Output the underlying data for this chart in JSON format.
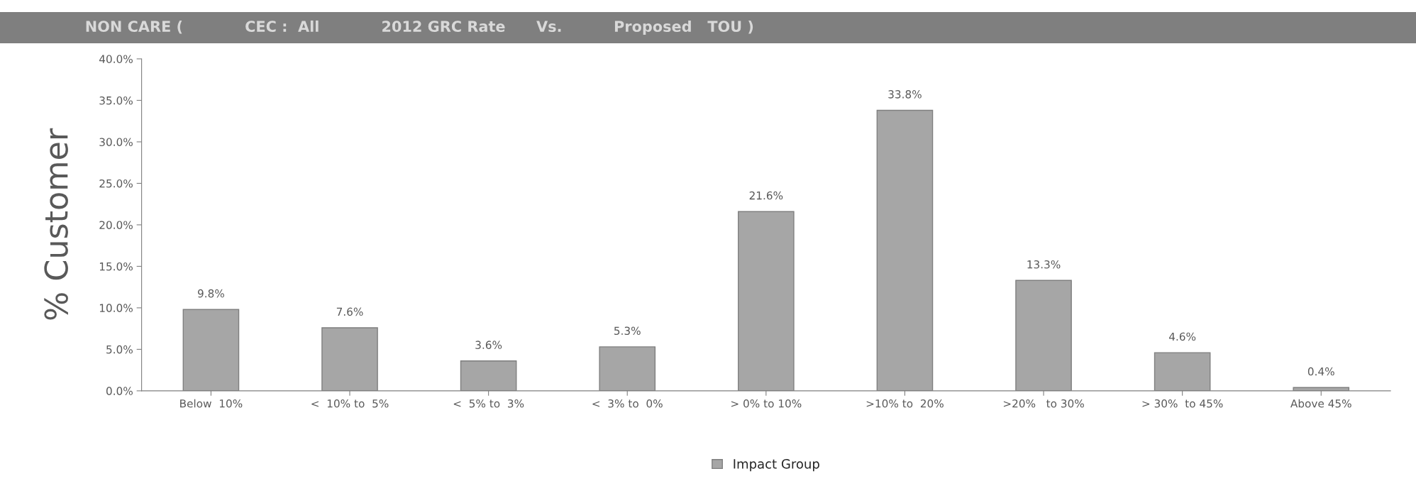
{
  "chart_data": {
    "type": "bar",
    "title": "NON CARE (            CEC :  All            2012 GRC Rate      Vs.          Proposed   TOU )",
    "ylabel": "% Customer",
    "categories": [
      "Below  10%",
      "<  10% to  5%",
      "<  5% to  3%",
      "<  3% to  0%",
      "> 0% to 10%",
      ">10% to  20%",
      ">20%   to 30%",
      "> 30%  to 45%",
      "Above 45%"
    ],
    "series": [
      {
        "name": "Impact Group",
        "color": "#a6a6a6",
        "values": [
          9.8,
          7.6,
          3.6,
          5.3,
          21.6,
          33.8,
          13.3,
          4.6,
          0.4
        ],
        "value_labels": [
          "9.8%",
          "7.6%",
          "3.6%",
          "5.3%",
          "21.6%",
          "33.8%",
          "13.3%",
          "4.6%",
          "0.4%"
        ]
      }
    ],
    "ylim": [
      0,
      40
    ],
    "yticks": [
      {
        "value": 0,
        "label": "0.0%"
      },
      {
        "value": 5,
        "label": "5.0%"
      },
      {
        "value": 10,
        "label": "10.0%"
      },
      {
        "value": 15,
        "label": "15.0%"
      },
      {
        "value": 20,
        "label": "20.0%"
      },
      {
        "value": 25,
        "label": "25.0%"
      },
      {
        "value": 30,
        "label": "30.0%"
      },
      {
        "value": 35,
        "label": "35.0%"
      },
      {
        "value": 40,
        "label": "40.0%"
      }
    ],
    "grid": false,
    "legend": "bottom"
  }
}
